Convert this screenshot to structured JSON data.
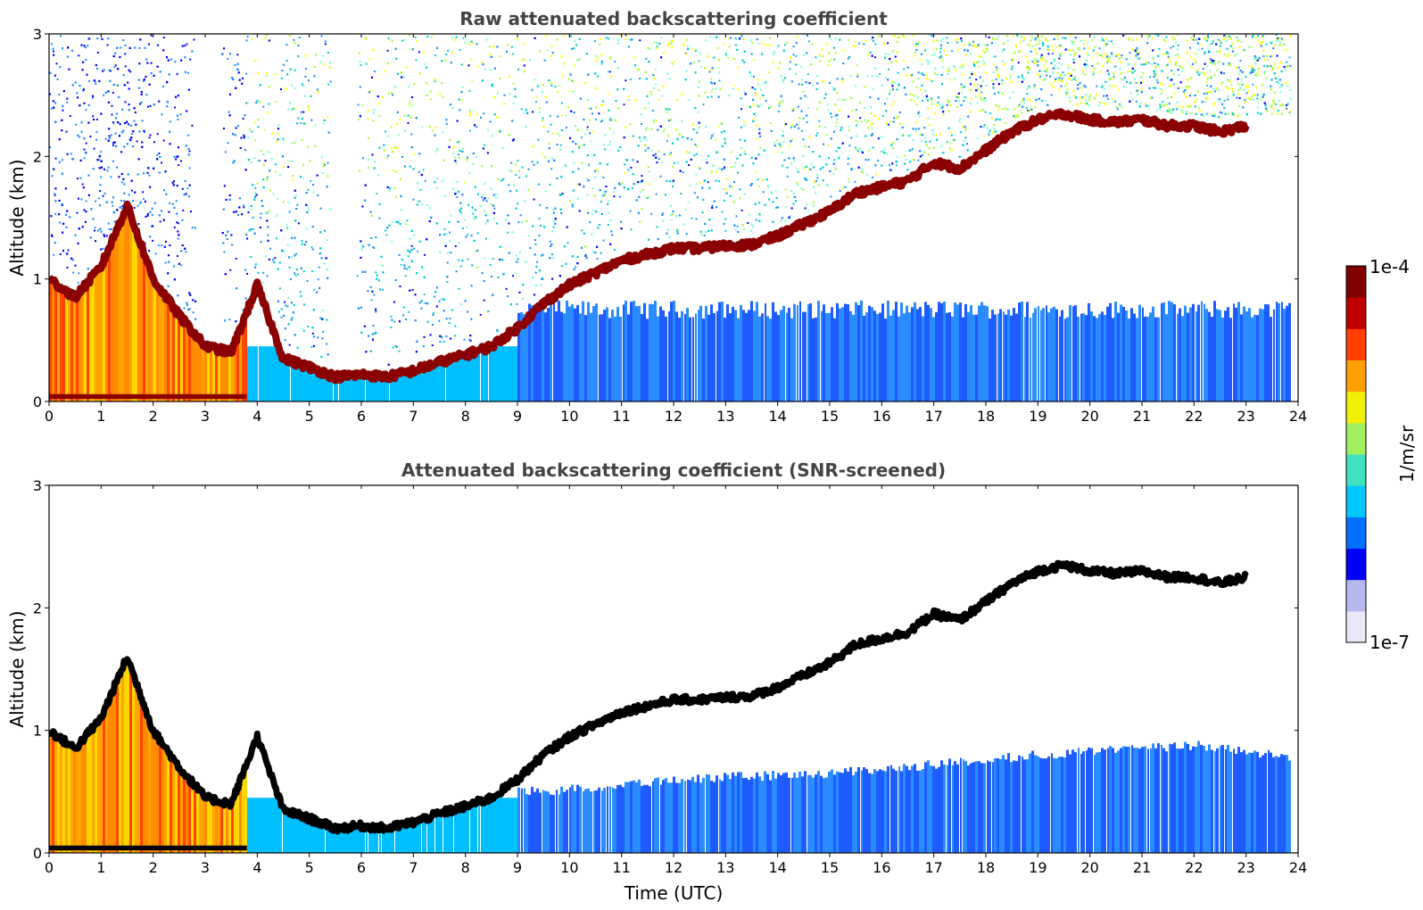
{
  "chart_data": [
    {
      "type": "heatmap",
      "title": "Raw attenuated backscattering coefficient",
      "xlabel": "",
      "ylabel": "Altitude (km)",
      "xlim": [
        0,
        24
      ],
      "ylim": [
        0,
        3
      ],
      "x_ticks": [
        "0",
        "1",
        "2",
        "3",
        "4",
        "5",
        "6",
        "7",
        "8",
        "9",
        "10",
        "11",
        "12",
        "13",
        "14",
        "15",
        "16",
        "17",
        "18",
        "19",
        "20",
        "21",
        "22",
        "23",
        "24"
      ],
      "y_ticks": [
        "0",
        "1",
        "2",
        "3"
      ],
      "data_end_time": 23.85,
      "boundary_layer_top": {
        "time": [
          0,
          0.5,
          1,
          1.5,
          2,
          2.5,
          3,
          3.5,
          4,
          4.5,
          5,
          5.5,
          6,
          6.5,
          7,
          7.5,
          8,
          8.5,
          9,
          9.5,
          10,
          10.5,
          11,
          11.5,
          12,
          12.5,
          13,
          13.5,
          14,
          14.5,
          15,
          15.5,
          16,
          16.5,
          17,
          17.5,
          18,
          18.5,
          19,
          19.5,
          20,
          20.5,
          21,
          21.5,
          22,
          22.5,
          23
        ],
        "altitude_km": [
          1.0,
          0.85,
          1.1,
          1.6,
          1.0,
          0.7,
          0.45,
          0.4,
          0.95,
          0.35,
          0.28,
          0.2,
          0.22,
          0.2,
          0.25,
          0.32,
          0.38,
          0.45,
          0.6,
          0.8,
          0.95,
          1.05,
          1.15,
          1.2,
          1.25,
          1.25,
          1.27,
          1.28,
          1.35,
          1.45,
          1.55,
          1.7,
          1.75,
          1.8,
          1.95,
          1.9,
          2.05,
          2.2,
          2.3,
          2.35,
          2.3,
          2.28,
          2.3,
          2.25,
          2.25,
          2.2,
          2.25
        ]
      },
      "aerosol_layer_top_km": 0.75
    },
    {
      "type": "heatmap",
      "title": "Attenuated backscattering coefficient (SNR-screened)",
      "xlabel": "Time (UTC)",
      "ylabel": "Altitude (km)",
      "xlim": [
        0,
        24
      ],
      "ylim": [
        0,
        3
      ],
      "x_ticks": [
        "0",
        "1",
        "2",
        "3",
        "4",
        "5",
        "6",
        "7",
        "8",
        "9",
        "10",
        "11",
        "12",
        "13",
        "14",
        "15",
        "16",
        "17",
        "18",
        "19",
        "20",
        "21",
        "22",
        "23",
        "24"
      ],
      "y_ticks": [
        "0",
        "1",
        "2",
        "3"
      ],
      "data_end_time": 23.85,
      "boundary_layer_top": {
        "time": [
          0,
          0.5,
          1,
          1.5,
          2,
          2.5,
          3,
          3.5,
          4,
          4.5,
          5,
          5.5,
          6,
          6.5,
          7,
          7.5,
          8,
          8.5,
          9,
          9.5,
          10,
          10.5,
          11,
          11.5,
          12,
          12.5,
          13,
          13.5,
          14,
          14.5,
          15,
          15.5,
          16,
          16.5,
          17,
          17.5,
          18,
          18.5,
          19,
          19.5,
          20,
          20.5,
          21,
          21.5,
          22,
          22.5,
          23
        ],
        "altitude_km": [
          1.0,
          0.85,
          1.1,
          1.6,
          1.0,
          0.7,
          0.45,
          0.4,
          0.95,
          0.35,
          0.28,
          0.2,
          0.22,
          0.2,
          0.25,
          0.32,
          0.38,
          0.45,
          0.6,
          0.8,
          0.95,
          1.05,
          1.15,
          1.2,
          1.25,
          1.25,
          1.27,
          1.28,
          1.35,
          1.45,
          1.55,
          1.7,
          1.75,
          1.8,
          1.95,
          1.9,
          2.05,
          2.2,
          2.3,
          2.35,
          2.3,
          2.28,
          2.3,
          2.25,
          2.25,
          2.2,
          2.25
        ]
      },
      "aerosol_layer_top_km": {
        "time": [
          9.5,
          12,
          15,
          17,
          19,
          21,
          22,
          23.85
        ],
        "altitude_km": [
          0.5,
          0.6,
          0.65,
          0.72,
          0.8,
          0.85,
          0.88,
          0.78
        ]
      }
    }
  ],
  "colorbar": {
    "label": "1/m/sr",
    "max_label": "1e-4",
    "min_label": "1e-7",
    "scale": "log",
    "colormap": [
      "#e8e8f8",
      "#b8b8f0",
      "#0000ff",
      "#0070ff",
      "#00c8ff",
      "#40e0c0",
      "#a0f060",
      "#f0f000",
      "#ffa000",
      "#ff4000",
      "#c00000",
      "#800000"
    ]
  },
  "colors": {
    "boundary_layer": "#8b0000",
    "screened_boundary_layer": "#000000",
    "aerosol": "#1e5cff",
    "aerosol_light": "#2a8cff",
    "noise": [
      "#0000ff",
      "#1e90ff",
      "#00ced1",
      "#7fffd4",
      "#adff2f",
      "#ffff00"
    ],
    "residual_layer": [
      "#ffd700",
      "#ff8c00",
      "#ff4500",
      "#ffa500"
    ]
  }
}
